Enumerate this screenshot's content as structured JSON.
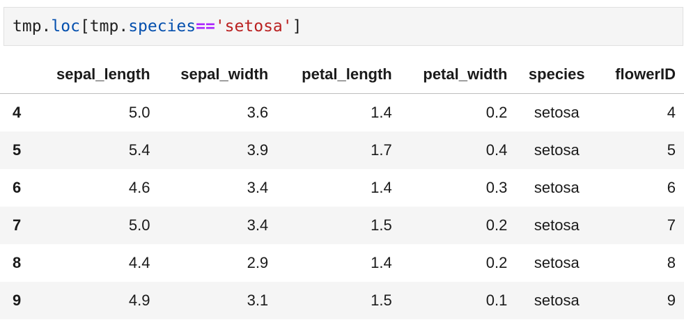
{
  "code_cell": {
    "tokens": [
      {
        "text": "tmp.",
        "kind": "plain"
      },
      {
        "text": "loc",
        "kind": "attr"
      },
      {
        "text": "[tmp.",
        "kind": "plain"
      },
      {
        "text": "species",
        "kind": "attr"
      },
      {
        "text": "==",
        "kind": "op"
      },
      {
        "text": "'setosa'",
        "kind": "str"
      },
      {
        "text": "]",
        "kind": "plain"
      }
    ]
  },
  "table": {
    "index_header": "",
    "columns": [
      "sepal_length",
      "sepal_width",
      "petal_length",
      "petal_width",
      "species",
      "flowerID"
    ],
    "rows": [
      {
        "index": "4",
        "values": [
          "5.0",
          "3.6",
          "1.4",
          "0.2",
          "setosa",
          "4"
        ]
      },
      {
        "index": "5",
        "values": [
          "5.4",
          "3.9",
          "1.7",
          "0.4",
          "setosa",
          "5"
        ]
      },
      {
        "index": "6",
        "values": [
          "4.6",
          "3.4",
          "1.4",
          "0.3",
          "setosa",
          "6"
        ]
      },
      {
        "index": "7",
        "values": [
          "5.0",
          "3.4",
          "1.5",
          "0.2",
          "setosa",
          "7"
        ]
      },
      {
        "index": "8",
        "values": [
          "4.4",
          "2.9",
          "1.4",
          "0.2",
          "setosa",
          "8"
        ]
      },
      {
        "index": "9",
        "values": [
          "4.9",
          "3.1",
          "1.5",
          "0.1",
          "setosa",
          "9"
        ]
      }
    ]
  }
}
